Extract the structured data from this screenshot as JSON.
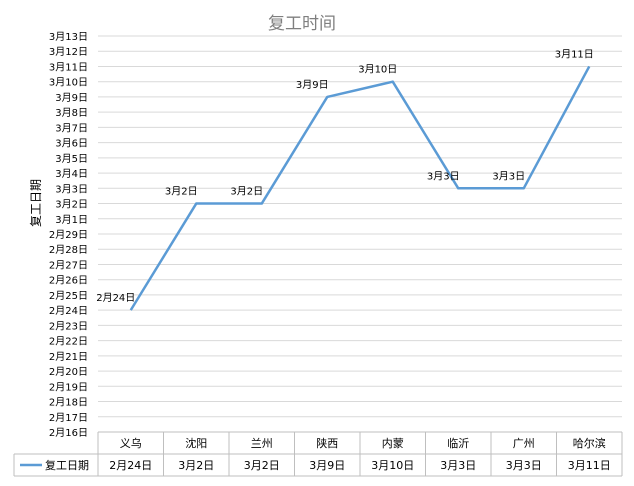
{
  "chart_data": {
    "type": "line",
    "title": "复工时间",
    "ylabel": "复工日期",
    "yticks": [
      "2月16日",
      "2月17日",
      "2月18日",
      "2月19日",
      "2月20日",
      "2月21日",
      "2月22日",
      "2月23日",
      "2月24日",
      "2月25日",
      "2月26日",
      "2月27日",
      "2月28日",
      "2月29日",
      "3月1日",
      "3月2日",
      "3月3日",
      "3月4日",
      "3月5日",
      "3月6日",
      "3月7日",
      "3月8日",
      "3月9日",
      "3月10日",
      "3月11日",
      "3月12日",
      "3月13日"
    ],
    "ylim": [
      "2月16日",
      "3月13日"
    ],
    "categories": [
      "义乌",
      "沈阳",
      "兰州",
      "陕西",
      "内蒙",
      "临沂",
      "广州",
      "哈尔滨"
    ],
    "series": [
      {
        "name": "复工日期",
        "values": [
          "2月24日",
          "3月2日",
          "3月2日",
          "3月9日",
          "3月10日",
          "3月3日",
          "3月3日",
          "3月11日"
        ],
        "color": "#5b9bd5"
      }
    ],
    "data_labels": [
      "2月24日",
      "3月2日",
      "3月2日",
      "3月9日",
      "3月10日",
      "3月3日",
      "3月3日",
      "3月11日"
    ],
    "grid": true,
    "legend": "data-table"
  }
}
